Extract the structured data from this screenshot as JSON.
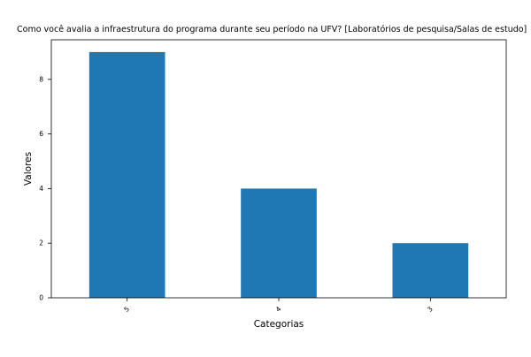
{
  "chart_data": {
    "type": "bar",
    "title": "Como você avalia a infraestrutura do programa durante seu período na UFV? [Laboratórios de pesquisa/Salas de estudo]",
    "xlabel": "Categorias",
    "ylabel": "Valores",
    "categories": [
      "5",
      "4",
      "3"
    ],
    "values": [
      9,
      4,
      2
    ],
    "ylim": [
      0,
      9.45
    ],
    "yticks": [
      0,
      2,
      4,
      6,
      8
    ],
    "bar_color": "#1f77b4",
    "grid": false,
    "legend": "none"
  }
}
